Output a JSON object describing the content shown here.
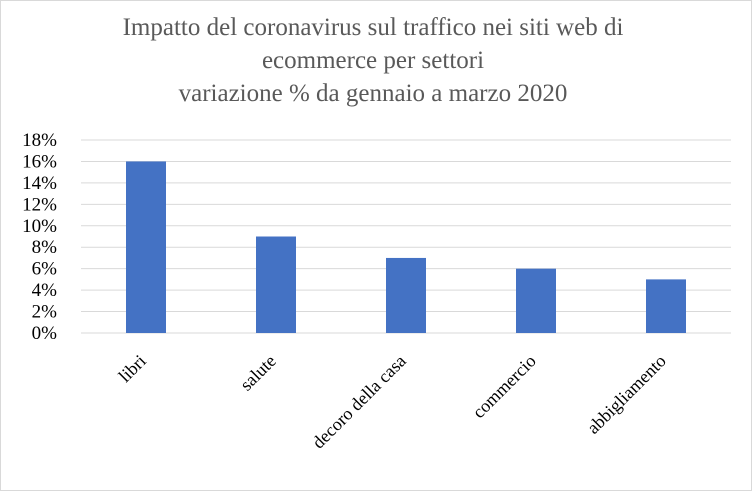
{
  "chart_data": {
    "type": "bar",
    "title_lines": [
      "Impatto del coronavirus sul traffico nei siti web di",
      "ecommerce per settori",
      "variazione % da gennaio  a marzo 2020"
    ],
    "categories": [
      "libri",
      "salute",
      "decoro della casa",
      "commercio",
      "abbigliamento"
    ],
    "values": [
      16,
      9,
      7,
      6,
      5
    ],
    "yticks": [
      "0%",
      "2%",
      "4%",
      "6%",
      "8%",
      "10%",
      "12%",
      "14%",
      "16%",
      "18%"
    ],
    "ylim": [
      0,
      18
    ],
    "grid": true,
    "legend": "none",
    "bar_color": "#4472c4"
  }
}
